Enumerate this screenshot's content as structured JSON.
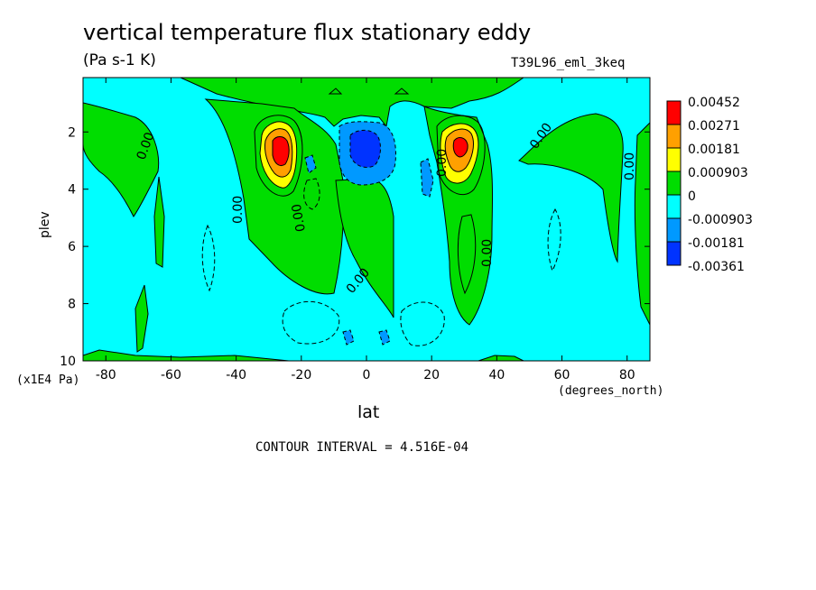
{
  "chart_data": {
    "type": "heatmap",
    "title": "vertical temperature flux stationary eddy",
    "units": "(Pa s-1 K)",
    "run_label": "T39L96_eml_3keq",
    "xlabel": "lat",
    "xunit": "(degrees_north)",
    "ylabel": "plev",
    "yunit": "(x1E4 Pa)",
    "contour_interval_text": "CONTOUR INTERVAL = 4.516E-04",
    "xlim": [
      -87,
      87
    ],
    "ylim": [
      10,
      0.1
    ],
    "x_ticks": [
      -80,
      -60,
      -40,
      -20,
      0,
      20,
      40,
      60,
      80
    ],
    "y_ticks": [
      2,
      4,
      6,
      8,
      10
    ],
    "contour_line_label": "0.00",
    "colorbar": {
      "levels": [
        "0.00452",
        "0.00271",
        "0.00181",
        "0.000903",
        "0",
        "-0.000903",
        "-0.00181",
        "-0.00361"
      ],
      "colors": [
        "#ff0000",
        "#ffa000",
        "#ffff00",
        "#00dd00",
        "#00ffff",
        "#0099ff",
        "#0033ff"
      ]
    },
    "features": [
      {
        "lat": -27,
        "plev": 2.7,
        "value": 0.0045,
        "sign": "positive",
        "label": "SH subtropical maximum"
      },
      {
        "lat": 28,
        "plev": 2.6,
        "value": 0.0045,
        "sign": "positive",
        "label": "NH subtropical maximum"
      },
      {
        "lat": 0,
        "plev": 2.8,
        "value": -0.0018,
        "sign": "negative",
        "label": "equatorial minimum"
      },
      {
        "lat": -18,
        "plev": 3.2,
        "value": -0.0009,
        "sign": "negative"
      },
      {
        "lat": 18,
        "plev": 3.6,
        "value": -0.0009,
        "sign": "negative"
      },
      {
        "lat": -3,
        "plev": 9.3,
        "value": -0.0009,
        "sign": "negative"
      },
      {
        "lat": 5,
        "plev": 9.3,
        "value": -0.0009,
        "sign": "negative"
      }
    ]
  }
}
